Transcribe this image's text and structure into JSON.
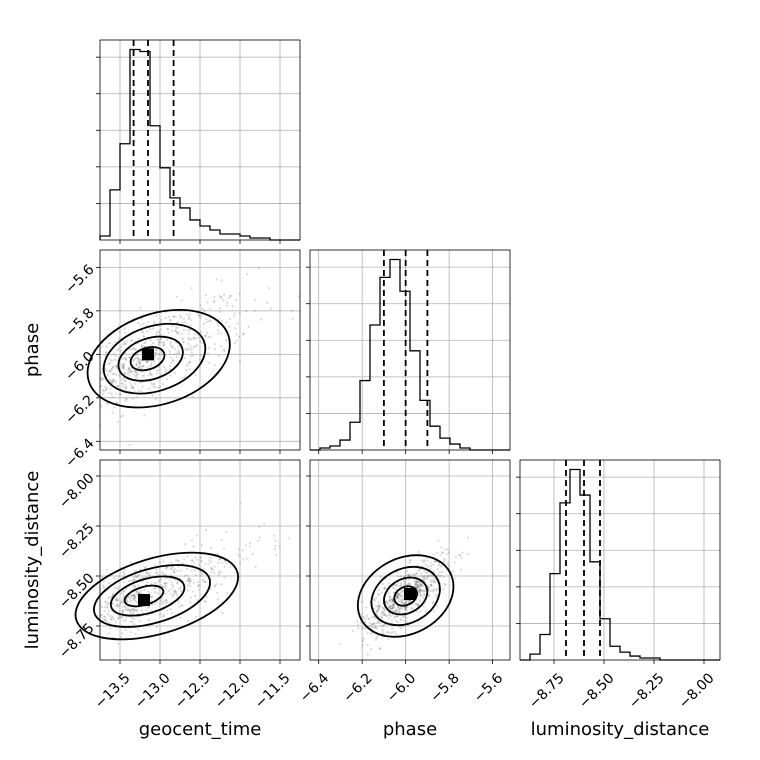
{
  "chart_data": {
    "type": "corner",
    "parameters": [
      "geocent_time",
      "phase",
      "luminosity_distance"
    ],
    "axis_labels": {
      "geocent_time": "geocent_time",
      "phase": "phase",
      "luminosity_distance": "luminosity_distance"
    },
    "ranges": {
      "geocent_time": [
        -13.75,
        -11.25
      ],
      "phase": [
        -6.44,
        -5.52
      ],
      "luminosity_distance": [
        -8.92,
        -7.92
      ]
    },
    "ticks": {
      "geocent_time": [
        -13.5,
        -13.0,
        -12.5,
        -12.0,
        -11.5
      ],
      "phase": [
        -6.4,
        -6.2,
        -6.0,
        -5.8,
        -5.6
      ],
      "luminosity_distance": [
        -8.75,
        -8.5,
        -8.25,
        -8.0
      ]
    },
    "tick_labels": {
      "geocent_time": [
        "−13.5",
        "−13.0",
        "−12.5",
        "−12.0",
        "−11.5"
      ],
      "phase": [
        "−6.4",
        "−6.2",
        "−6.0",
        "−5.8",
        "−5.6"
      ],
      "luminosity_distance": [
        "−8.75",
        "−8.50",
        "−8.25",
        "−8.00"
      ]
    },
    "histograms": {
      "geocent_time": {
        "bin_edges": [
          -13.75,
          -13.625,
          -13.5,
          -13.375,
          -13.25,
          -13.125,
          -13.0,
          -12.875,
          -12.75,
          -12.625,
          -12.5,
          -12.375,
          -12.25,
          -12.125,
          -12.0,
          -11.875,
          -11.75,
          -11.625,
          -11.5,
          -11.375,
          -11.25
        ],
        "counts": [
          2,
          25,
          48,
          95,
          94,
          57,
          36,
          21,
          16,
          10,
          7,
          5,
          3,
          3,
          2,
          1,
          1,
          0,
          0,
          0
        ],
        "quantiles": [
          -13.33,
          -13.15,
          -12.83
        ]
      },
      "phase": {
        "bin_edges": [
          -6.44,
          -6.394,
          -6.348,
          -6.302,
          -6.256,
          -6.21,
          -6.164,
          -6.118,
          -6.072,
          -6.026,
          -5.98,
          -5.934,
          -5.888,
          -5.842,
          -5.796,
          -5.75,
          -5.704,
          -5.658,
          -5.612,
          -5.566,
          -5.52
        ],
        "counts": [
          0,
          1,
          2,
          5,
          14,
          35,
          63,
          87,
          96,
          80,
          50,
          25,
          12,
          6,
          3,
          1,
          0,
          0,
          0,
          0
        ],
        "quantiles": [
          -6.1,
          -6.0,
          -5.9
        ]
      },
      "luminosity_distance": {
        "bin_edges": [
          -8.92,
          -8.87,
          -8.82,
          -8.77,
          -8.72,
          -8.67,
          -8.62,
          -8.57,
          -8.52,
          -8.47,
          -8.42,
          -8.37,
          -8.32,
          -8.27,
          -8.22,
          -8.17,
          -8.12,
          -8.07,
          -8.02,
          -7.97,
          -7.92
        ],
        "counts": [
          0,
          3,
          13,
          44,
          80,
          97,
          84,
          50,
          21,
          7,
          4,
          2,
          1,
          1,
          0,
          0,
          0,
          0,
          0,
          0
        ],
        "quantiles": [
          -8.69,
          -8.6,
          -8.52
        ]
      }
    },
    "joint": [
      {
        "x": "geocent_time",
        "y": "phase",
        "center": [
          -13.2,
          -6.02
        ],
        "spread": [
          0.35,
          0.11
        ],
        "correlation": 0.5,
        "density_peak": [
          -13.15,
          -6.0
        ]
      },
      {
        "x": "geocent_time",
        "y": "luminosity_distance",
        "center": [
          -13.25,
          -8.6
        ],
        "spread": [
          0.4,
          0.1
        ],
        "correlation": 0.6,
        "density_peak": [
          -13.2,
          -8.62
        ]
      },
      {
        "x": "phase",
        "y": "luminosity_distance",
        "center": [
          -6.0,
          -8.6
        ],
        "spread": [
          0.1,
          0.1
        ],
        "correlation": 0.75,
        "density_peak": [
          -5.98,
          -8.59
        ]
      }
    ]
  }
}
